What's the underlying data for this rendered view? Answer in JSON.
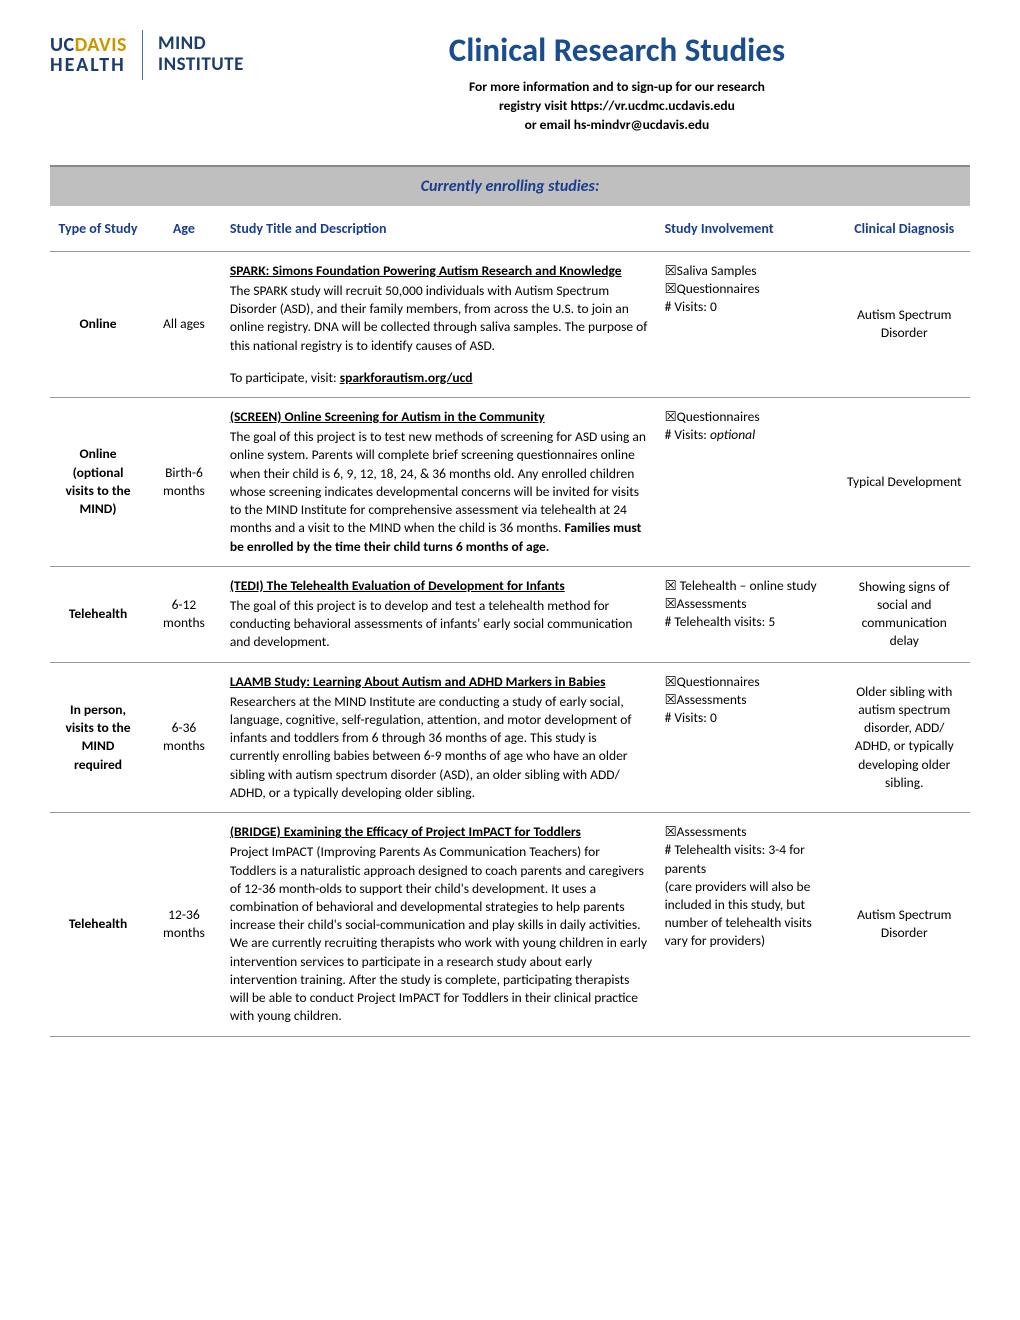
{
  "header": {
    "logo_uc": "UC",
    "logo_davis": "DAVIS",
    "logo_health": "HEALTH",
    "logo_mind1": "MIND",
    "logo_mind2": "INSTITUTE",
    "title": "Clinical Research Studies",
    "subtitle1": "For more information and to sign-up for our research",
    "subtitle2": "registry visit https://vr.ucdmc.ucdavis.edu",
    "subtitle3": "or email hs-mindvr@ucdavis.edu"
  },
  "section_title": "Currently enrolling studies:",
  "columns": {
    "type": "Type of Study",
    "age": "Age",
    "title": "Study Title and Description",
    "involvement": "Study Involvement",
    "diagnosis": "Clinical Diagnosis"
  },
  "studies": [
    {
      "type": "Online",
      "age": "All ages",
      "title": "SPARK:  Simons Foundation Powering Autism Research and Knowledge",
      "desc": "The SPARK study will recruit 50,000 individuals with Autism Spectrum Disorder (ASD), and their family members, from across the U.S. to join an online registry. DNA will be collected through saliva samples. The purpose of this national registry is to identify causes of ASD.",
      "link_prefix": "To participate, visit: ",
      "link": "sparkforautism.org/ucd",
      "involvement": [
        "☒Saliva Samples",
        "☒Questionnaires",
        "# Visits: 0"
      ],
      "diagnosis": "Autism Spectrum Disorder"
    },
    {
      "type": "Online (optional visits to the MIND)",
      "age": "Birth-6 months",
      "title": "(SCREEN) Online Screening for Autism in the Community",
      "desc": "The goal of this project is to test new methods of screening for ASD using an online system. Parents will complete brief screening questionnaires online when their child is 6, 9, 12, 18, 24, & 36 months old. Any enrolled children whose screening indicates developmental concerns will be invited for visits to the MIND Institute for comprehensive assessment via telehealth at 24 months and a visit to the MIND when the child is 36 months. ",
      "desc_bold": "Families must be enrolled by the time their child turns 6 months of age.",
      "involvement": [
        "☒Questionnaires"
      ],
      "involvement_extra": "# Visits: ",
      "involvement_extra_italic": "optional",
      "diagnosis": "Typical Development"
    },
    {
      "type": "Telehealth",
      "age": "6-12 months",
      "title": "(TEDI) The Telehealth Evaluation of Development for Infants",
      "desc": "The goal of this project is to develop and test a telehealth method for conducting behavioral assessments of infants' early social communication and development.",
      "involvement": [
        "☒ Telehealth – online study",
        "☒Assessments",
        "# Telehealth visits: 5"
      ],
      "diagnosis": "Showing signs of social and communication delay"
    },
    {
      "type": "In person, visits to the MIND required",
      "age": "6-36 months",
      "title": "LAAMB Study: Learning About Autism and ADHD Markers in Babies",
      "desc": "Researchers at the MIND Institute are conducting a study of early social, language, cognitive, self-regulation, attention, and motor development of infants and toddlers from 6 through 36 months of age. This study is currently enrolling babies between 6-9 months of age who have an older sibling with autism spectrum disorder (ASD), an older sibling with ADD/ ADHD, or a typically developing older sibling.",
      "involvement": [
        "☒Questionnaires",
        "☒Assessments",
        "# Visits: 0"
      ],
      "diagnosis": "Older sibling with autism spectrum disorder, ADD/ ADHD, or typically developing older sibling."
    },
    {
      "type": "Telehealth",
      "age": "12-36 months",
      "title": "(BRIDGE) Examining the Efficacy of Project ImPACT for Toddlers",
      "desc": "Project ImPACT (Improving Parents As Communication Teachers) for Toddlers is a naturalistic approach designed to coach parents and caregivers of 12-36 month-olds to support their child's development. It uses a combination of behavioral and developmental strategies to help parents increase their child's social-communication and play skills in daily activities. We are currently recruiting therapists who work with young children in early intervention services to participate in a research study about early intervention training. After the study is complete, participating therapists will be able to conduct Project ImPACT for Toddlers in their clinical practice with young children.",
      "involvement": [
        "☒Assessments",
        "# Telehealth visits: 3-4 for parents",
        "(care providers will also be included in this study, but number of telehealth visits vary for providers)"
      ],
      "diagnosis": "Autism Spectrum Disorder"
    }
  ]
}
